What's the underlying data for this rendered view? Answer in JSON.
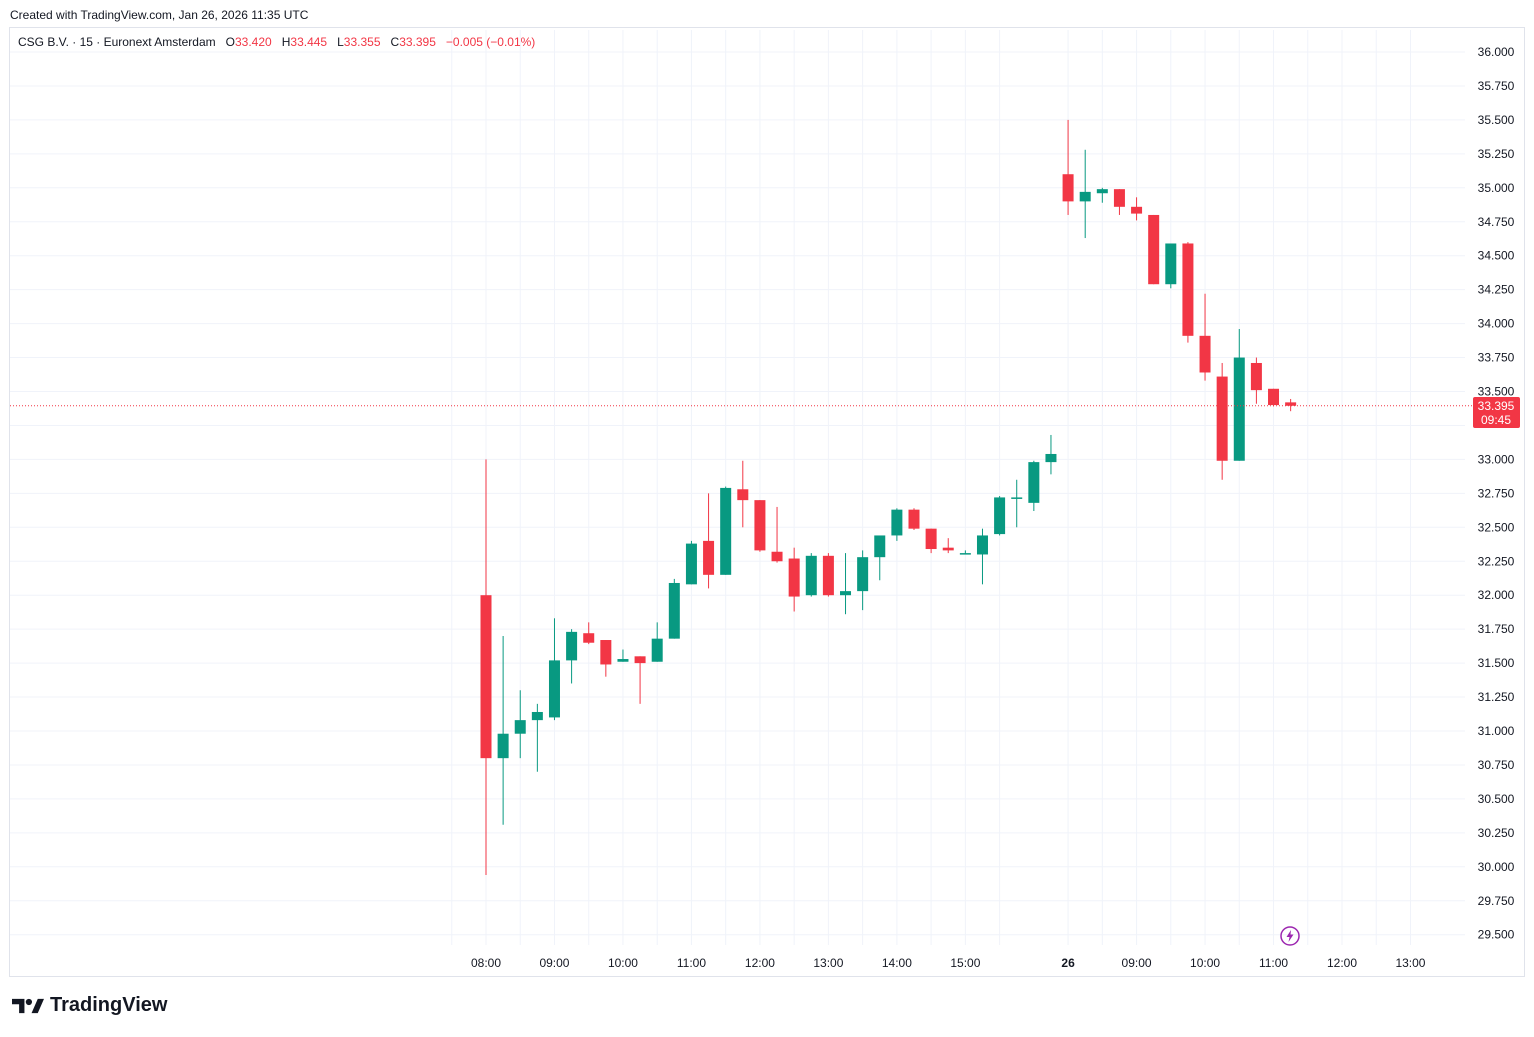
{
  "caption": "Created with TradingView.com, Jan 26, 2026 11:35 UTC",
  "legend": {
    "symbol": "CSG B.V. · 15 · Euronext Amsterdam",
    "o_label": "O",
    "o_value": "33.420",
    "h_label": "H",
    "h_value": "33.445",
    "l_label": "L",
    "l_value": "33.355",
    "c_label": "C",
    "c_value": "33.395",
    "change": "−0.005 (−0.01%)"
  },
  "logo": {
    "text": "TradingView",
    "icon": "tradingview-logo-icon"
  },
  "colors": {
    "up": "#089981",
    "down": "#f23645",
    "grid": "#f0f3fa",
    "axis_text": "#131722",
    "price_line": "#f23645",
    "bolt": "#9c27b0"
  },
  "chart_data": {
    "type": "candlestick",
    "interval": "15",
    "ylim": [
      29.5,
      36.0
    ],
    "y_ticks": [
      "36.000",
      "35.750",
      "35.500",
      "35.250",
      "35.000",
      "34.750",
      "34.500",
      "34.250",
      "34.000",
      "33.750",
      "33.500",
      "33.000",
      "32.750",
      "32.500",
      "32.250",
      "32.000",
      "31.750",
      "31.500",
      "31.250",
      "31.000",
      "30.750",
      "30.500",
      "30.250",
      "30.000",
      "29.750",
      "29.500"
    ],
    "x_ticks": [
      {
        "label": "08:00",
        "index": 0,
        "bold": false
      },
      {
        "label": "09:00",
        "index": 4,
        "bold": false
      },
      {
        "label": "10:00",
        "index": 8,
        "bold": false
      },
      {
        "label": "11:00",
        "index": 12,
        "bold": false
      },
      {
        "label": "12:00",
        "index": 16,
        "bold": false
      },
      {
        "label": "13:00",
        "index": 20,
        "bold": false
      },
      {
        "label": "14:00",
        "index": 24,
        "bold": false
      },
      {
        "label": "15:00",
        "index": 28,
        "bold": false
      },
      {
        "label": "26",
        "index": 34,
        "bold": true
      },
      {
        "label": "09:00",
        "index": 38,
        "bold": false
      },
      {
        "label": "10:00",
        "index": 42,
        "bold": false
      },
      {
        "label": "11:00",
        "index": 46,
        "bold": false
      },
      {
        "label": "12:00",
        "index": 50,
        "bold": false
      },
      {
        "label": "13:00",
        "index": 54,
        "bold": false
      }
    ],
    "candles": [
      {
        "o": 32.0,
        "h": 33.0,
        "l": 29.94,
        "c": 30.8
      },
      {
        "o": 30.8,
        "h": 31.7,
        "l": 30.31,
        "c": 30.98
      },
      {
        "o": 30.98,
        "h": 31.3,
        "l": 30.8,
        "c": 31.08
      },
      {
        "o": 31.08,
        "h": 31.2,
        "l": 30.7,
        "c": 31.14
      },
      {
        "o": 31.1,
        "h": 31.83,
        "l": 31.08,
        "c": 31.52
      },
      {
        "o": 31.52,
        "h": 31.75,
        "l": 31.35,
        "c": 31.73
      },
      {
        "o": 31.72,
        "h": 31.8,
        "l": 31.64,
        "c": 31.65
      },
      {
        "o": 31.67,
        "h": 31.67,
        "l": 31.4,
        "c": 31.49
      },
      {
        "o": 31.51,
        "h": 31.6,
        "l": 31.51,
        "c": 31.53
      },
      {
        "o": 31.55,
        "h": 31.55,
        "l": 31.2,
        "c": 31.5
      },
      {
        "o": 31.51,
        "h": 31.8,
        "l": 31.51,
        "c": 31.68
      },
      {
        "o": 31.68,
        "h": 32.12,
        "l": 31.68,
        "c": 32.09
      },
      {
        "o": 32.08,
        "h": 32.4,
        "l": 32.08,
        "c": 32.38
      },
      {
        "o": 32.4,
        "h": 32.75,
        "l": 32.05,
        "c": 32.15
      },
      {
        "o": 32.15,
        "h": 32.8,
        "l": 32.15,
        "c": 32.79
      },
      {
        "o": 32.78,
        "h": 32.99,
        "l": 32.5,
        "c": 32.7
      },
      {
        "o": 32.7,
        "h": 32.7,
        "l": 32.32,
        "c": 32.33
      },
      {
        "o": 32.32,
        "h": 32.65,
        "l": 32.24,
        "c": 32.25
      },
      {
        "o": 32.27,
        "h": 32.35,
        "l": 31.88,
        "c": 31.99
      },
      {
        "o": 32.0,
        "h": 32.31,
        "l": 31.99,
        "c": 32.29
      },
      {
        "o": 32.29,
        "h": 32.31,
        "l": 31.99,
        "c": 32.0
      },
      {
        "o": 32.0,
        "h": 32.31,
        "l": 31.86,
        "c": 32.03
      },
      {
        "o": 32.03,
        "h": 32.33,
        "l": 31.89,
        "c": 32.28
      },
      {
        "o": 32.28,
        "h": 32.43,
        "l": 32.11,
        "c": 32.44
      },
      {
        "o": 32.44,
        "h": 32.64,
        "l": 32.4,
        "c": 32.63
      },
      {
        "o": 32.63,
        "h": 32.64,
        "l": 32.48,
        "c": 32.49
      },
      {
        "o": 32.49,
        "h": 32.49,
        "l": 32.31,
        "c": 32.34
      },
      {
        "o": 32.35,
        "h": 32.42,
        "l": 32.31,
        "c": 32.33
      },
      {
        "o": 32.31,
        "h": 32.33,
        "l": 32.3,
        "c": 32.31
      },
      {
        "o": 32.3,
        "h": 32.49,
        "l": 32.08,
        "c": 32.44
      },
      {
        "o": 32.45,
        "h": 32.73,
        "l": 32.44,
        "c": 32.72
      },
      {
        "o": 32.71,
        "h": 32.85,
        "l": 32.5,
        "c": 32.72
      },
      {
        "o": 32.68,
        "h": 32.99,
        "l": 32.62,
        "c": 32.98
      },
      {
        "o": 32.98,
        "h": 33.18,
        "l": 32.89,
        "c": 33.04
      },
      {
        "o": 35.1,
        "h": 35.5,
        "l": 34.8,
        "c": 34.9
      },
      {
        "o": 34.9,
        "h": 35.28,
        "l": 34.63,
        "c": 34.97
      },
      {
        "o": 34.96,
        "h": 35.0,
        "l": 34.89,
        "c": 34.99
      },
      {
        "o": 34.99,
        "h": 34.99,
        "l": 34.8,
        "c": 34.86
      },
      {
        "o": 34.86,
        "h": 34.93,
        "l": 34.76,
        "c": 34.81
      },
      {
        "o": 34.8,
        "h": 34.8,
        "l": 34.29,
        "c": 34.29
      },
      {
        "o": 34.29,
        "h": 34.59,
        "l": 34.26,
        "c": 34.59
      },
      {
        "o": 34.59,
        "h": 34.6,
        "l": 33.86,
        "c": 33.91
      },
      {
        "o": 33.91,
        "h": 34.22,
        "l": 33.58,
        "c": 33.64
      },
      {
        "o": 33.61,
        "h": 33.71,
        "l": 32.85,
        "c": 32.99
      },
      {
        "o": 32.99,
        "h": 33.96,
        "l": 32.99,
        "c": 33.75
      },
      {
        "o": 33.71,
        "h": 33.75,
        "l": 33.41,
        "c": 33.51
      },
      {
        "o": 33.52,
        "h": 33.52,
        "l": 33.39,
        "c": 33.4
      },
      {
        "o": 33.42,
        "h": 33.445,
        "l": 33.355,
        "c": 33.395
      }
    ],
    "last_price": "33.395",
    "countdown": "09:45"
  }
}
